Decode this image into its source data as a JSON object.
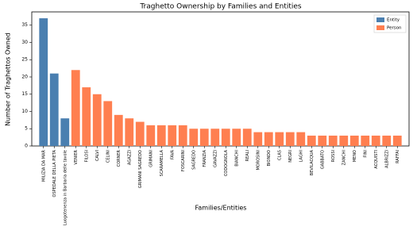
{
  "chart_data": {
    "type": "bar",
    "title": "Traghetto Ownership by Families and Entities",
    "x_label": "Families/Entities",
    "y_label": "Number of Traghettos Owned",
    "categories": [
      "MILIZIA DA MAR",
      "OSPEDALE DELLA PIETA",
      "Luogotenenza in Barbaria delle tavole",
      "VENIER",
      "FILOSI",
      "CALVI",
      "CELINI",
      "CORNER",
      "AGAZZI",
      "GRIMANI SAGREDO",
      "GRIMANI",
      "SCARAMELLA",
      "FAVA",
      "FOSCARINI",
      "SAGREDO",
      "FRANZIA",
      "GAVAZZI",
      "CODOGNOLA",
      "BIANCHI",
      "REALI",
      "MOROSINI",
      "BIONDO",
      "CLAS",
      "NEGRI",
      "LAGHI",
      "BEVILACQUA",
      "GABBATO",
      "ROSSI",
      "ZANCHI",
      "MENO",
      "FINI",
      "ACQUISTI",
      "ALBRIZZI",
      "RAFFAI"
    ],
    "series": [
      {
        "name": "Entity",
        "color": "#4a7fb0",
        "values": [
          37,
          21,
          8,
          null,
          null,
          null,
          null,
          null,
          null,
          null,
          null,
          null,
          null,
          null,
          null,
          null,
          null,
          null,
          null,
          null,
          null,
          null,
          null,
          null,
          null,
          null,
          null,
          null,
          null,
          null,
          null,
          null,
          null,
          null
        ]
      },
      {
        "name": "Person",
        "color": "#ff7f50",
        "values": [
          null,
          null,
          null,
          22,
          17,
          15,
          13,
          9,
          8,
          7,
          6,
          6,
          6,
          6,
          5,
          5,
          5,
          5,
          5,
          5,
          4,
          4,
          4,
          4,
          4,
          3,
          3,
          3,
          3,
          3,
          3,
          3,
          3,
          3
        ]
      }
    ],
    "ylim": [
      0,
      38.85
    ],
    "yticks": [
      0,
      5,
      10,
      15,
      20,
      25,
      30,
      35
    ],
    "legend": "upper right"
  }
}
